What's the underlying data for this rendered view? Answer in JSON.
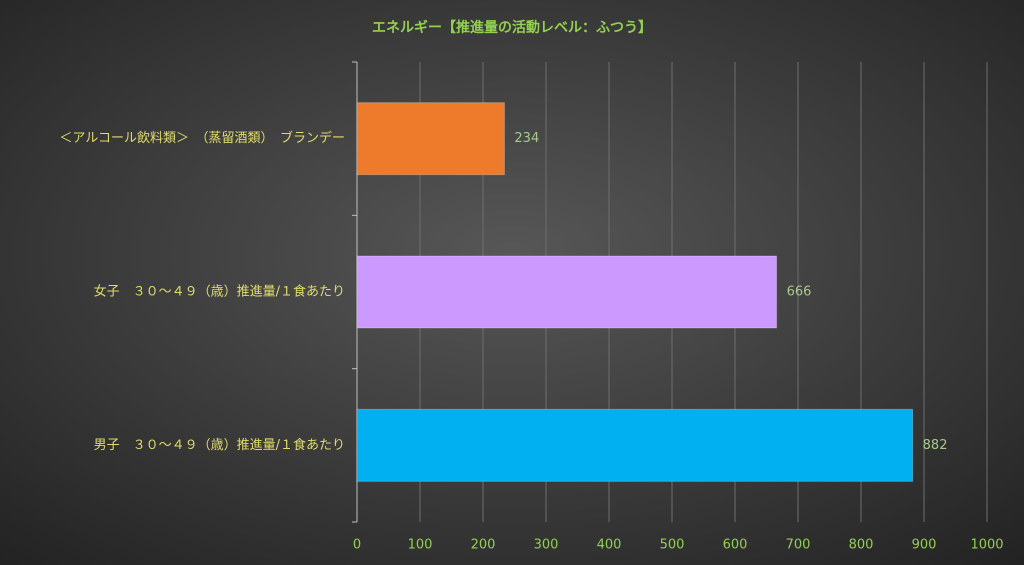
{
  "chart_data": {
    "type": "bar",
    "orientation": "horizontal",
    "title": "エネルギー【推進量の活動レベル：ふつう】",
    "categories": [
      "＜アルコール飲料類＞　（蒸留酒類）　ブランデー",
      "女子　３０～４９（歳）推進量/１食あたり",
      "男子　３０～４９（歳）推進量/１食あたり"
    ],
    "values": [
      234,
      666,
      882
    ],
    "colors": [
      "#ee7a2c",
      "#cc99ff",
      "#00b0f0"
    ],
    "xlim": [
      0,
      1000
    ],
    "xticks": [
      0,
      100,
      200,
      300,
      400,
      500,
      600,
      700,
      800,
      900,
      1000
    ],
    "grid": true
  }
}
